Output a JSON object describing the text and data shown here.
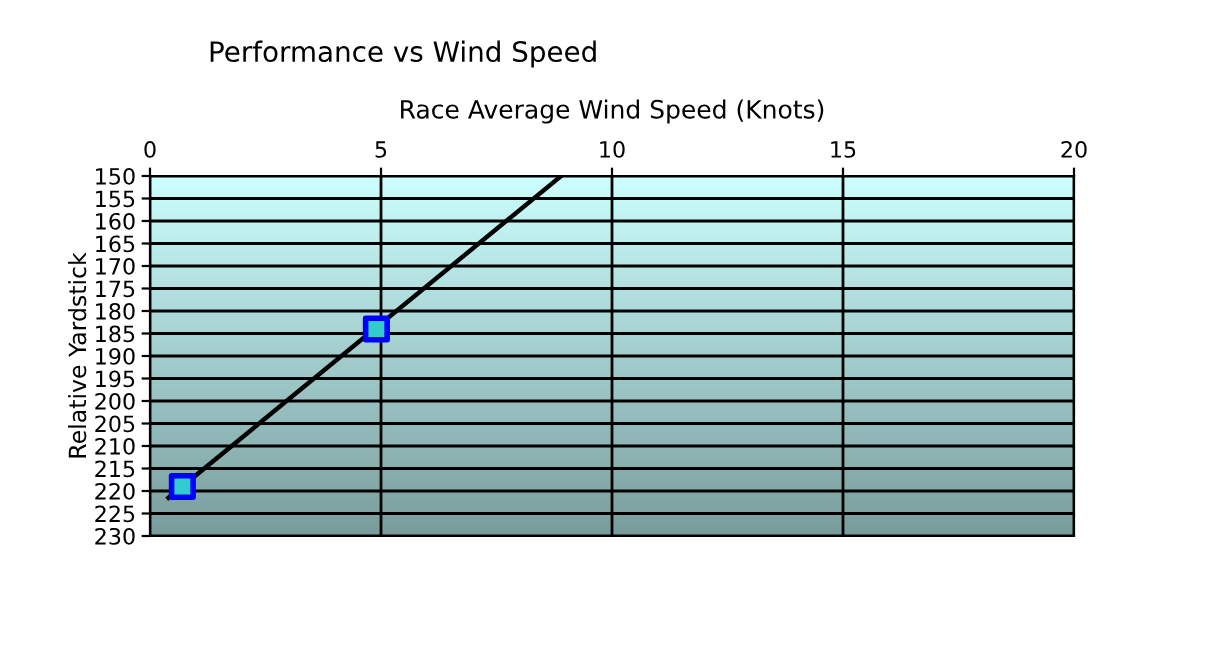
{
  "chart_data": {
    "type": "scatter",
    "title": "Performance vs Wind Speed",
    "xlabel": "Race Average Wind Speed (Knots)",
    "ylabel": "Relative Yardstick",
    "series": [
      {
        "color": "#0000ff",
        "marker": "square",
        "x": [
          0.7,
          4.9
        ],
        "values": [
          219,
          184
        ]
      },
      {
        "type": "line",
        "color": "#000000",
        "marker": "none",
        "line_style": "solid",
        "x": [
          0.4,
          8.9
        ],
        "values": [
          221.5,
          150
        ]
      }
    ],
    "xlim": [
      0,
      20
    ],
    "xticks": [
      0,
      5,
      10,
      15,
      20
    ],
    "ylim": [
      230,
      150
    ],
    "yticks": [
      150,
      155,
      160,
      165,
      170,
      175,
      180,
      185,
      190,
      195,
      200,
      205,
      210,
      215,
      220,
      225,
      230
    ],
    "grid": true
  }
}
